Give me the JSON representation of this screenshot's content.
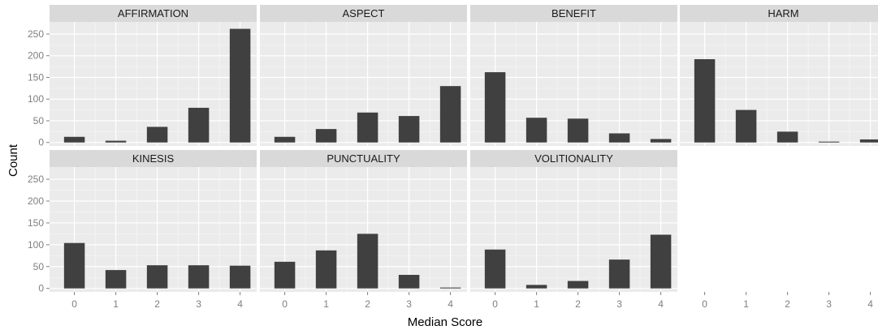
{
  "chart_data": {
    "type": "bar",
    "layout": "facet-grid",
    "xlabel": "Median Score",
    "ylabel": "Count",
    "x_ticks": [
      0,
      1,
      2,
      3,
      4
    ],
    "y_ticks": [
      0,
      50,
      100,
      150,
      200,
      250
    ],
    "ylim": [
      -8,
      278
    ],
    "xlim": [
      -0.6,
      4.4
    ],
    "grid": true,
    "panels": [
      {
        "name": "AFFIRMATION",
        "x": [
          0,
          1,
          2,
          3,
          4
        ],
        "values": [
          13,
          4,
          36,
          80,
          262
        ]
      },
      {
        "name": "ASPECT",
        "x": [
          0,
          1,
          2,
          3,
          4
        ],
        "values": [
          13,
          31,
          69,
          61,
          130
        ]
      },
      {
        "name": "BENEFIT",
        "x": [
          0,
          1,
          2,
          3,
          4
        ],
        "values": [
          162,
          57,
          55,
          21,
          8
        ]
      },
      {
        "name": "HARM",
        "x": [
          0,
          1,
          2,
          3,
          4
        ],
        "values": [
          192,
          75,
          25,
          2,
          7
        ]
      },
      {
        "name": "KINESIS",
        "x": [
          0,
          1,
          2,
          3,
          4
        ],
        "values": [
          104,
          42,
          53,
          53,
          52
        ]
      },
      {
        "name": "PUNCTUALITY",
        "x": [
          0,
          1,
          2,
          3,
          4
        ],
        "values": [
          61,
          87,
          125,
          31,
          2
        ]
      },
      {
        "name": "VOLITIONALITY",
        "x": [
          0,
          1,
          2,
          3,
          4
        ],
        "values": [
          89,
          8,
          17,
          66,
          123
        ]
      }
    ]
  },
  "colors": {
    "bar": "#404040",
    "panel_bg": "#ebebeb",
    "strip_bg": "#d9d9d9",
    "grid_major": "#ffffff",
    "grid_minor": "#f4f4f4",
    "tick_text": "#7f7f7f"
  }
}
